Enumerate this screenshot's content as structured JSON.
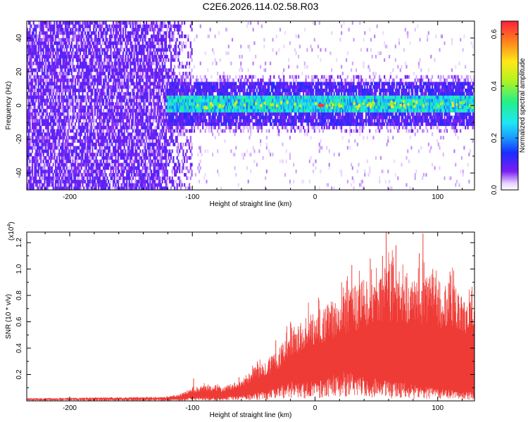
{
  "title": "C2E6.2026.114.02.58.R03",
  "chart_data": [
    {
      "type": "heatmap",
      "name": "spectrogram",
      "xlabel": "Height of straight line (km)",
      "ylabel": "Frequency (Hz)",
      "xlim": [
        -235,
        130
      ],
      "ylim": [
        -50,
        50
      ],
      "xticks": [
        -200,
        -100,
        0,
        100
      ],
      "yticks": [
        -40,
        -20,
        0,
        20,
        40
      ],
      "colorbar": {
        "label": "Normalized spectral amplitude",
        "range": [
          0.0,
          0.65
        ],
        "ticks": [
          0.0,
          0.2,
          0.4,
          0.6
        ]
      },
      "regions": [
        {
          "x_range": [
            -235,
            -105
          ],
          "freq_range": [
            -50,
            50
          ],
          "level": 0.07,
          "description": "broadband noise"
        },
        {
          "x_range": [
            -120,
            130
          ],
          "freq_range": [
            -12,
            12
          ],
          "level": 0.12,
          "description": "outer band"
        },
        {
          "x_range": [
            -110,
            130
          ],
          "freq_range": [
            -6,
            6
          ],
          "level": 0.32,
          "description": "core band"
        }
      ],
      "peak": {
        "x": 5,
        "freq": 0,
        "level": 0.63
      }
    },
    {
      "type": "line",
      "name": "snr",
      "xlabel": "Height of straight line (km)",
      "ylabel": "SNR (10 * v/v)",
      "multiplier": "(x10",
      "multiplier_exp": "4",
      "xlim": [
        -235,
        130
      ],
      "ylim": [
        0,
        1.28
      ],
      "xticks": [
        -200,
        -100,
        0,
        100
      ],
      "yticks": [
        0.2,
        0.4,
        0.6,
        0.8,
        1.0,
        1.2
      ],
      "color": "#ef3b36",
      "envelope": {
        "x": [
          -235,
          -125,
          -110,
          -100,
          -90,
          -75,
          -60,
          -50,
          -40,
          -30,
          -20,
          -10,
          0,
          10,
          20,
          30,
          40,
          50,
          60,
          70,
          80,
          90,
          100,
          110,
          120,
          130
        ],
        "upper": [
          0.02,
          0.03,
          0.05,
          0.1,
          0.12,
          0.11,
          0.16,
          0.26,
          0.31,
          0.38,
          0.55,
          0.62,
          0.68,
          0.75,
          0.8,
          0.85,
          0.93,
          0.95,
          1.0,
          0.98,
          0.9,
          1.0,
          0.92,
          0.9,
          0.85,
          0.85
        ],
        "lower": [
          0.01,
          0.01,
          0.01,
          0.02,
          0.02,
          0.02,
          0.03,
          0.04,
          0.05,
          0.07,
          0.1,
          0.1,
          0.1,
          0.12,
          0.15,
          0.15,
          0.12,
          0.12,
          0.1,
          0.1,
          0.08,
          0.08,
          0.06,
          0.06,
          0.05,
          0.05
        ]
      },
      "spikes": [
        [
          -99,
          0.17
        ],
        [
          -62,
          0.18
        ],
        [
          -47,
          0.3
        ],
        [
          -32,
          0.46
        ],
        [
          -20,
          0.6
        ],
        [
          30,
          1.03
        ],
        [
          45,
          1.08
        ],
        [
          55,
          1.1
        ],
        [
          58,
          1.28
        ],
        [
          66,
          1.18
        ],
        [
          85,
          1.12
        ],
        [
          88,
          1.27
        ],
        [
          96,
          1.0
        ],
        [
          110,
          0.98
        ]
      ]
    }
  ]
}
